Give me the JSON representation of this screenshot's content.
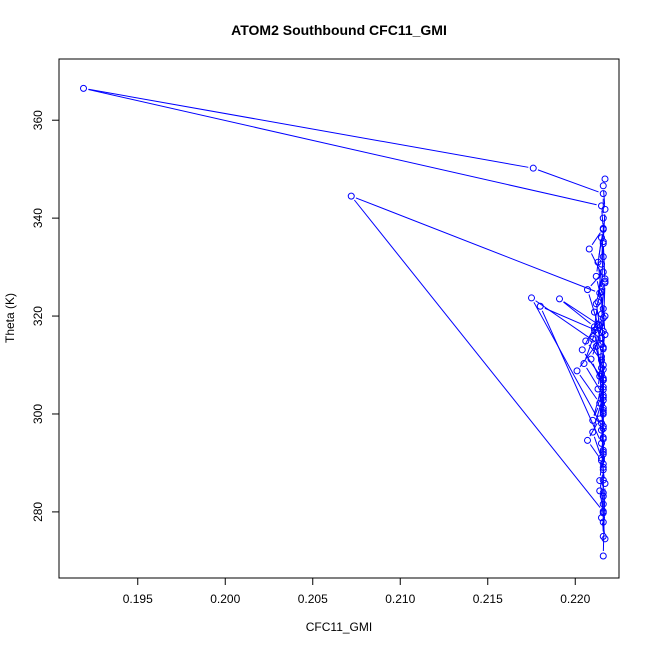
{
  "chart_data": {
    "type": "line",
    "title": "ATOM2 Southbound CFC11_GMI",
    "xlabel": "CFC11_GMI",
    "ylabel": "Theta (K)",
    "xlim": [
      0.1905,
      0.2225
    ],
    "ylim": [
      266.5,
      372.5
    ],
    "xticks": [
      "0.195",
      "0.200",
      "0.205",
      "0.210",
      "0.215",
      "0.220"
    ],
    "yticks": [
      "280",
      "300",
      "320",
      "340",
      "360"
    ],
    "grid": false,
    "legend": "none",
    "series_color": "#0000ff",
    "markers": "open-circle",
    "series": [
      {
        "x": [
          0.2216,
          0.2217,
          0.2215,
          0.221,
          0.2216,
          0.2205,
          0.2213,
          0.2207,
          0.2216,
          0.2212,
          0.2215,
          0.2201,
          0.2214,
          0.221,
          0.2216,
          0.2204,
          0.2215,
          0.2217,
          0.2216,
          0.2215,
          0.2212,
          0.2216,
          0.2217,
          0.2215,
          0.2213,
          0.2216,
          0.2216,
          0.2215,
          0.2216,
          0.2216,
          0.2216,
          0.2176,
          0.1919,
          0.2215,
          0.2216,
          0.2213,
          0.2215,
          0.2216,
          0.2212,
          0.2215,
          0.2216,
          0.2214,
          0.2207,
          0.2215,
          0.2216,
          0.2216,
          0.221,
          0.2213,
          0.2215,
          0.2216,
          0.2208,
          0.2217,
          0.2211,
          0.2215,
          0.2214,
          0.2216,
          0.2215,
          0.218,
          0.2215,
          0.2209,
          0.2216,
          0.2211,
          0.2191,
          0.2214,
          0.2206,
          0.2215,
          0.2216,
          0.2216,
          0.2215,
          0.2216,
          0.2216,
          0.2214,
          0.2216,
          0.2072,
          0.2214,
          0.2217,
          0.2211,
          0.2216,
          0.2215,
          0.2216,
          0.2216,
          0.2215,
          0.2216,
          0.2214,
          0.2216,
          0.2216,
          0.2217,
          0.2215,
          0.2216,
          0.2216,
          0.2216,
          0.2216,
          0.2175,
          0.2216,
          0.2216,
          0.2215,
          0.2216,
          0.2216,
          0.2216,
          0.2216,
          0.2216,
          0.2216,
          0.2216,
          0.2216,
          0.2216,
          0.2217,
          0.2216,
          0.2217,
          0.2216,
          0.2217
        ],
        "y": [
          271.0,
          285.8,
          291.0,
          296.3,
          303.8,
          310.3,
          318.3,
          325.4,
          329.0,
          322.5,
          315.6,
          308.8,
          302.2,
          298.7,
          306.9,
          313.1,
          320.4,
          327.6,
          332.1,
          336.0,
          328.1,
          321.5,
          316.2,
          311.7,
          305.1,
          300.3,
          310.0,
          324.9,
          334.8,
          340.0,
          345.0,
          350.2,
          366.5,
          342.5,
          337.7,
          331.0,
          325.0,
          319.6,
          313.8,
          308.2,
          303.4,
          299.0,
          294.6,
          290.5,
          297.5,
          309.1,
          315.3,
          322.9,
          330.6,
          337.9,
          333.7,
          327.1,
          320.8,
          314.2,
          307.7,
          300.7,
          294.0,
          322.0,
          316.6,
          311.2,
          305.5,
          317.8,
          323.5,
          318.1,
          314.9,
          311.0,
          307.0,
          302.8,
          298.1,
          292.2,
          288.6,
          284.3,
          280.1,
          344.5,
          324.7,
          320.0,
          317.1,
          313.3,
          309.4,
          305.0,
          300.0,
          296.7,
          292.6,
          286.4,
          281.6,
          277.9,
          274.5,
          278.8,
          283.9,
          289.1,
          294.9,
          297.0,
          323.7,
          313.6,
          307.3,
          302.1,
          295.2,
          289.8,
          286.5,
          279.8,
          275.0,
          283.2,
          291.8,
          301.2,
          316.9,
          326.8,
          335.2,
          341.8,
          346.6,
          348.0
        ]
      }
    ]
  }
}
